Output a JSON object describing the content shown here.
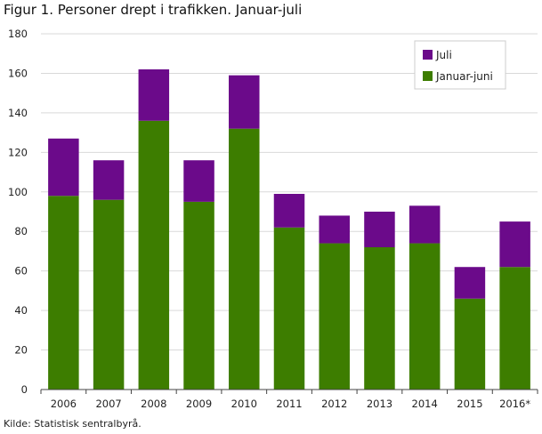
{
  "title": "Figur 1. Personer drept i trafikken. Januar-juli",
  "source": "Kilde: Statistisk sentralbyrå.",
  "chart_data": {
    "type": "bar",
    "stacked": true,
    "categories": [
      "2006",
      "2007",
      "2008",
      "2009",
      "2010",
      "2011",
      "2012",
      "2013",
      "2014",
      "2015",
      "2016*"
    ],
    "series": [
      {
        "name": "Januar-juni",
        "color": "#3d7d00",
        "values": [
          98,
          96,
          136,
          95,
          132,
          82,
          74,
          72,
          74,
          46,
          62
        ]
      },
      {
        "name": "Juli",
        "color": "#6b0a8a",
        "values": [
          29,
          20,
          26,
          21,
          27,
          17,
          14,
          18,
          19,
          16,
          23
        ]
      }
    ],
    "ylim": [
      0,
      180
    ],
    "yticks": [
      "0",
      "20",
      "40",
      "60",
      "80",
      "100",
      "120",
      "140",
      "160",
      "180"
    ],
    "grid": true,
    "legend_position": "top-right",
    "legend_order": [
      "Juli",
      "Januar-juni"
    ]
  }
}
